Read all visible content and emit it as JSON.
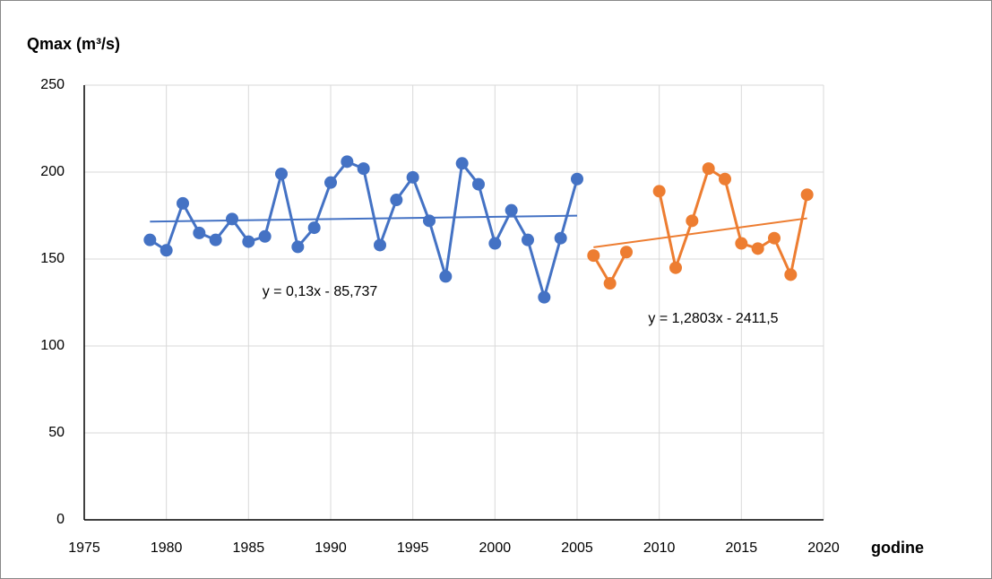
{
  "chart_data": {
    "type": "line",
    "y_label": "Qmax (m³/s)",
    "x_label": "godine",
    "xlim": [
      1975,
      2020
    ],
    "xticks": [
      1975,
      1980,
      1985,
      1990,
      1995,
      2000,
      2005,
      2010,
      2015,
      2020
    ],
    "ylim": [
      0,
      250
    ],
    "yticks": [
      0,
      50,
      100,
      150,
      200,
      250
    ],
    "grid": true,
    "series": [
      {
        "color": "#4472c4",
        "x": [
          1979,
          1980,
          1981,
          1982,
          1983,
          1984,
          1985,
          1986,
          1987,
          1988,
          1989,
          1990,
          1991,
          1992,
          1993,
          1994,
          1995,
          1996,
          1997,
          1998,
          1999,
          2000,
          2001,
          2002,
          2003,
          2004,
          2005
        ],
        "values": [
          161,
          155,
          182,
          165,
          161,
          173,
          160,
          163,
          199,
          157,
          168,
          194,
          206,
          202,
          158,
          184,
          197,
          172,
          140,
          205,
          193,
          159,
          178,
          161,
          128,
          162,
          196
        ],
        "trend": {
          "slope": 0.13,
          "intercept": -85.737,
          "label": "y = 0,13x - 85,737"
        }
      },
      {
        "color": "#ed7d31",
        "x": [
          2006,
          2007,
          2008,
          2009,
          2010,
          2011,
          2012,
          2013,
          2014,
          2015,
          2016,
          2017,
          2018,
          2019
        ],
        "values": [
          152,
          136,
          154,
          null,
          189,
          145,
          172,
          202,
          196,
          159,
          156,
          162,
          141,
          187
        ],
        "trend": {
          "slope": 1.2803,
          "intercept": -2411.5,
          "label": "y = 1,2803x - 2411,5"
        }
      }
    ]
  }
}
